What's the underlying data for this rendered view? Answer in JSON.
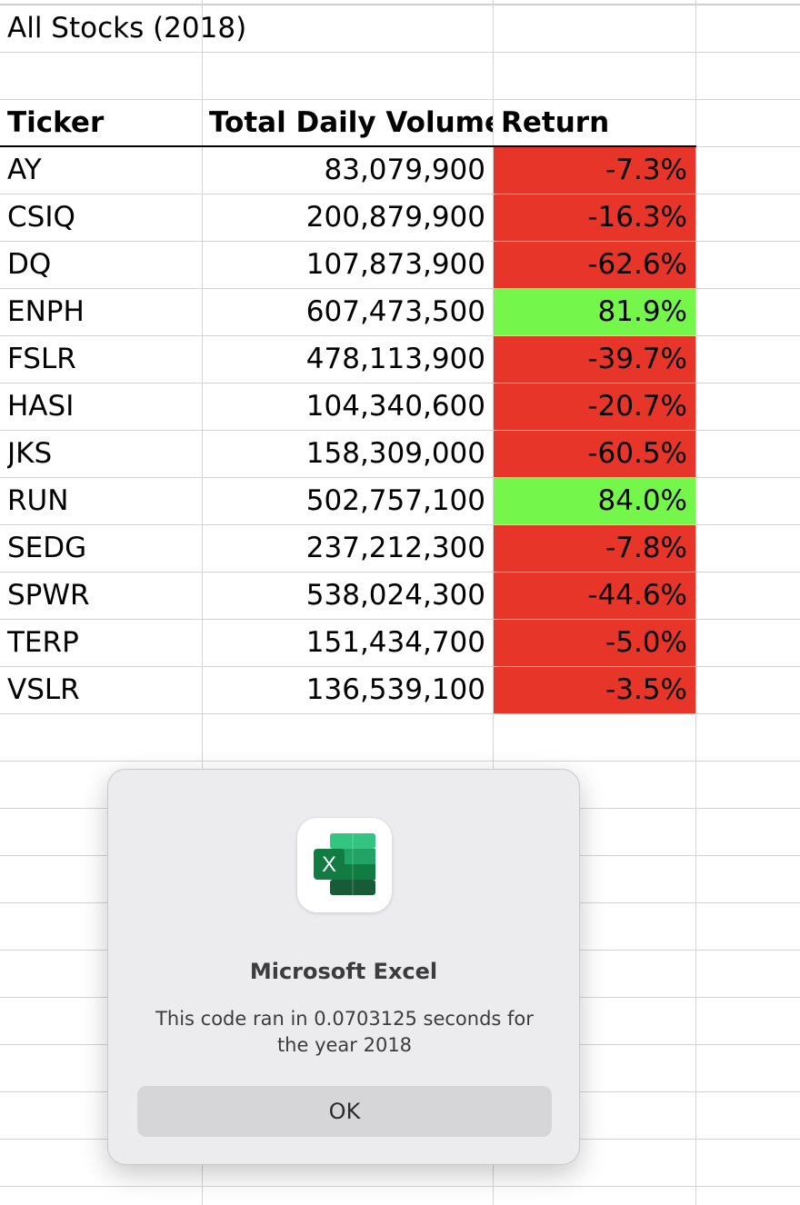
{
  "sheet": {
    "title": "All Stocks (2018)",
    "headers": {
      "ticker": "Ticker",
      "volume": "Total Daily Volume",
      "return": "Return"
    },
    "colors": {
      "negative": "#e8352a",
      "positive": "#74f64a"
    },
    "rows": [
      {
        "ticker": "AY",
        "volume": "83,079,900",
        "return": "-7.3%",
        "status": "negative"
      },
      {
        "ticker": "CSIQ",
        "volume": "200,879,900",
        "return": "-16.3%",
        "status": "negative"
      },
      {
        "ticker": "DQ",
        "volume": "107,873,900",
        "return": "-62.6%",
        "status": "negative"
      },
      {
        "ticker": "ENPH",
        "volume": "607,473,500",
        "return": "81.9%",
        "status": "positive"
      },
      {
        "ticker": "FSLR",
        "volume": "478,113,900",
        "return": "-39.7%",
        "status": "negative"
      },
      {
        "ticker": "HASI",
        "volume": "104,340,600",
        "return": "-20.7%",
        "status": "negative"
      },
      {
        "ticker": "JKS",
        "volume": "158,309,000",
        "return": "-60.5%",
        "status": "negative"
      },
      {
        "ticker": "RUN",
        "volume": "502,757,100",
        "return": "84.0%",
        "status": "positive"
      },
      {
        "ticker": "SEDG",
        "volume": "237,212,300",
        "return": "-7.8%",
        "status": "negative"
      },
      {
        "ticker": "SPWR",
        "volume": "538,024,300",
        "return": "-44.6%",
        "status": "negative"
      },
      {
        "ticker": "TERP",
        "volume": "151,434,700",
        "return": "-5.0%",
        "status": "negative"
      },
      {
        "ticker": "VSLR",
        "volume": "136,539,100",
        "return": "-3.5%",
        "status": "negative"
      }
    ]
  },
  "dialog": {
    "app_icon": "microsoft-excel-icon",
    "title": "Microsoft Excel",
    "message": "This code ran in 0.0703125 seconds for the year 2018",
    "ok_label": "OK"
  }
}
